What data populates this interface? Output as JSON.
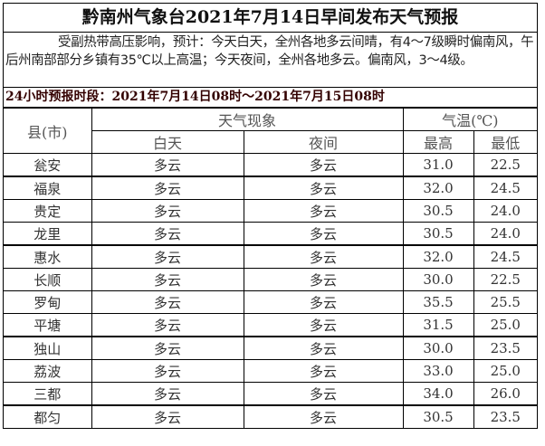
{
  "title": "黔南州气象台2021年7月14日早间发布天气预报",
  "summary": "受副热带高压影响，预计：今天白天，全州各地多云间晴，有4～7级瞬时偏南风，午后州南部部分乡镇有35℃以上高温；今天夜间，全州各地多云。偏南风，3～4级。",
  "period": "24小时预报时段：2021年7月14日08时～2021年7月15日08时",
  "headers": {
    "county": "县(市)",
    "weather": "天气现象",
    "temp": "气温(℃)",
    "day": "白天",
    "night": "夜间",
    "high": "最高",
    "low": "最低"
  },
  "rows": [
    {
      "county": "瓮安",
      "day": "多云",
      "night": "多云",
      "high": "31.0",
      "low": "22.5"
    },
    {
      "county": "福泉",
      "day": "多云",
      "night": "多云",
      "high": "32.0",
      "low": "24.5"
    },
    {
      "county": "贵定",
      "day": "多云",
      "night": "多云",
      "high": "30.5",
      "low": "24.0"
    },
    {
      "county": "龙里",
      "day": "多云",
      "night": "多云",
      "high": "30.5",
      "low": "24.0"
    },
    {
      "county": "惠水",
      "day": "多云",
      "night": "多云",
      "high": "32.0",
      "low": "24.5"
    },
    {
      "county": "长顺",
      "day": "多云",
      "night": "多云",
      "high": "30.0",
      "low": "22.5"
    },
    {
      "county": "罗甸",
      "day": "多云",
      "night": "多云",
      "high": "35.5",
      "low": "25.5"
    },
    {
      "county": "平塘",
      "day": "多云",
      "night": "多云",
      "high": "31.5",
      "low": "25.0"
    },
    {
      "county": "独山",
      "day": "多云",
      "night": "多云",
      "high": "30.0",
      "low": "23.5"
    },
    {
      "county": "荔波",
      "day": "多云",
      "night": "多云",
      "high": "33.0",
      "low": "25.0"
    },
    {
      "county": "三都",
      "day": "多云",
      "night": "多云",
      "high": "34.0",
      "low": "26.0"
    },
    {
      "county": "都匀",
      "day": "多云",
      "night": "多云",
      "high": "30.5",
      "low": "23.5"
    }
  ]
}
